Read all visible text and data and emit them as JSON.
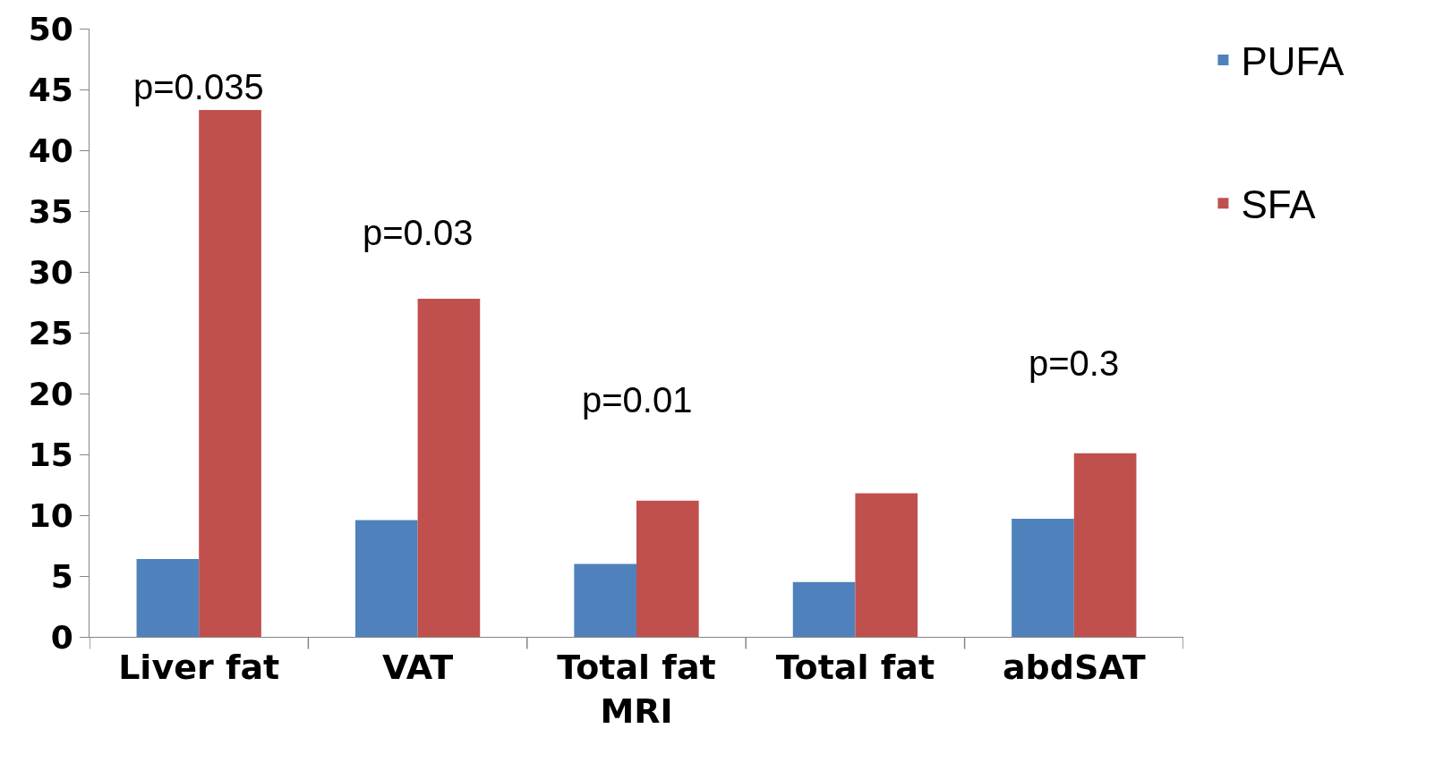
{
  "chart_data": {
    "type": "bar",
    "categories": [
      "Liver fat",
      "VAT",
      "Total fat\nMRI",
      "Total fat",
      "abdSAT"
    ],
    "series": [
      {
        "name": "PUFA",
        "color": "#4f81bd",
        "values": [
          6.4,
          9.6,
          6.0,
          4.5,
          9.7
        ]
      },
      {
        "name": "SFA",
        "color": "#c0504d",
        "values": [
          43.3,
          27.8,
          11.2,
          11.8,
          15.1
        ]
      }
    ],
    "ylim": [
      0,
      50
    ],
    "yticks": [
      0,
      5,
      10,
      15,
      20,
      25,
      30,
      35,
      40,
      45,
      50
    ],
    "annotations": [
      "p=0.035",
      "p=0.03",
      "p=0.01",
      "p=0.3"
    ],
    "legend": "top right"
  }
}
